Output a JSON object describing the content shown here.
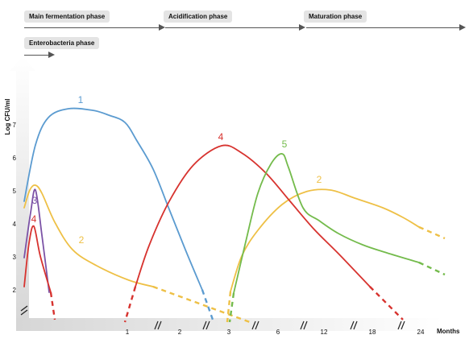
{
  "phases": [
    {
      "id": "main",
      "label": "Main fermentation phase"
    },
    {
      "id": "acid",
      "label": "Acidification phase"
    },
    {
      "id": "mat",
      "label": "Maturation phase"
    },
    {
      "id": "entero",
      "label": "Enterobacteria phase"
    }
  ],
  "chart_data": {
    "type": "line",
    "ylabel": "Log CFU/ml",
    "xlabel": "Months",
    "ylim": [
      2,
      7.5
    ],
    "yticks": [
      "2",
      "3",
      "4",
      "5",
      "6",
      "7"
    ],
    "xticks": [
      "1",
      "2",
      "3",
      "6",
      "12",
      "18",
      "24"
    ],
    "colors": {
      "1": "#5b9bd0",
      "2": "#eec046",
      "3": "#7c53a6",
      "4": "#d7332f",
      "5": "#74bb4c"
    },
    "series": [
      {
        "name": "1",
        "color": "#5b9bd0",
        "dashes": [
          [
            251,
            360,
            264,
            397
          ]
        ],
        "path": [
          [
            30,
            250
          ],
          [
            44,
            180
          ],
          [
            60,
            146
          ],
          [
            85,
            135
          ],
          [
            115,
            137
          ],
          [
            135,
            143
          ],
          [
            155,
            152
          ],
          [
            170,
            175
          ],
          [
            190,
            210
          ],
          [
            210,
            260
          ],
          [
            230,
            310
          ],
          [
            251,
            360
          ]
        ]
      },
      {
        "name": "2",
        "color": "#eec046",
        "dashes": [
          [
            190,
            356,
            310,
            400
          ]
        ],
        "path": [
          [
            30,
            258
          ],
          [
            37,
            236
          ],
          [
            44,
            230
          ],
          [
            52,
            240
          ],
          [
            68,
            276
          ],
          [
            90,
            310
          ],
          [
            120,
            330
          ],
          [
            160,
            348
          ],
          [
            190,
            356
          ]
        ]
      },
      {
        "name": "3",
        "color": "#7c53a6",
        "dashes": [],
        "path": [
          [
            30,
            320
          ],
          [
            38,
            264
          ],
          [
            44,
            236
          ],
          [
            52,
            292
          ],
          [
            61,
            363
          ]
        ]
      },
      {
        "name": "4",
        "color": "#d7332f",
        "dashes": [
          [
            63,
            363,
            68,
            397
          ]
        ],
        "path": [
          [
            30,
            356
          ],
          [
            36,
            302
          ],
          [
            42,
            281
          ],
          [
            50,
            318
          ],
          [
            63,
            363
          ]
        ]
      },
      {
        "name": "2",
        "color": "#eec046",
        "dashes": [
          [
            286,
            362,
            282,
            400
          ],
          [
            520,
            282,
            552,
            296
          ]
        ],
        "path": [
          [
            286,
            362
          ],
          [
            300,
            318
          ],
          [
            320,
            286
          ],
          [
            350,
            254
          ],
          [
            380,
            238
          ],
          [
            410,
            236
          ],
          [
            440,
            246
          ],
          [
            475,
            258
          ],
          [
            500,
            270
          ],
          [
            520,
            282
          ]
        ]
      },
      {
        "name": "4",
        "color": "#d7332f",
        "dashes": [
          [
            168,
            356,
            155,
            400
          ],
          [
            459,
            356,
            500,
            397
          ]
        ],
        "path": [
          [
            168,
            356
          ],
          [
            185,
            305
          ],
          [
            210,
            250
          ],
          [
            240,
            205
          ],
          [
            275,
            181
          ],
          [
            300,
            190
          ],
          [
            330,
            215
          ],
          [
            360,
            250
          ],
          [
            390,
            285
          ],
          [
            420,
            315
          ],
          [
            459,
            356
          ]
        ]
      },
      {
        "name": "5",
        "color": "#74bb4c",
        "dashes": [
          [
            290,
            364,
            285,
            400
          ],
          [
            520,
            326,
            552,
            341
          ]
        ],
        "path": [
          [
            290,
            364
          ],
          [
            305,
            300
          ],
          [
            320,
            240
          ],
          [
            336,
            204
          ],
          [
            350,
            191
          ],
          [
            358,
            208
          ],
          [
            376,
            258
          ],
          [
            396,
            274
          ],
          [
            420,
            290
          ],
          [
            450,
            304
          ],
          [
            480,
            314
          ],
          [
            520,
            326
          ]
        ]
      }
    ],
    "series_labels": [
      {
        "name": "1",
        "color": "#5b9bd0",
        "value": "1"
      },
      {
        "name": "2",
        "color": "#eec046",
        "value": "2"
      },
      {
        "name": "3",
        "color": "#7c53a6",
        "value": "3"
      },
      {
        "name": "4",
        "color": "#d7332f",
        "value": "4"
      },
      {
        "name": "4",
        "color": "#d7332f",
        "value": "4"
      },
      {
        "name": "5",
        "color": "#74bb4c",
        "value": "5"
      },
      {
        "name": "2",
        "color": "#eec046",
        "value": "2"
      }
    ]
  }
}
